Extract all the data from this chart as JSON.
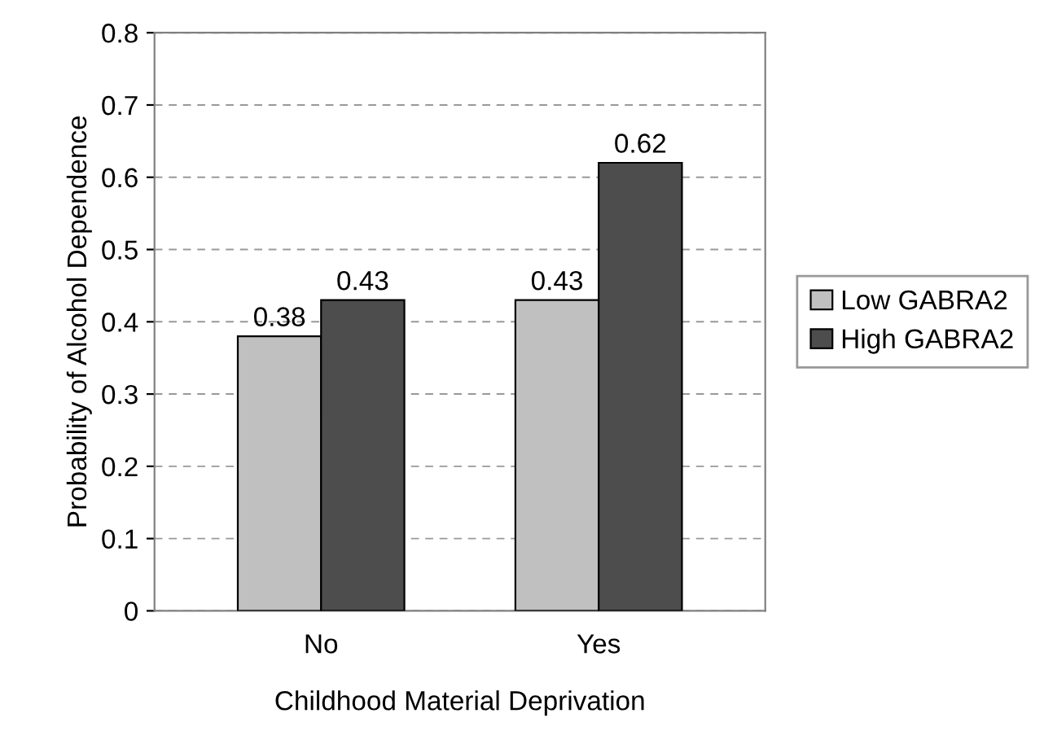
{
  "chart_data": {
    "type": "bar",
    "xlabel": "Childhood Material Deprivation",
    "ylabel": "Probability of Alcohol Dependence",
    "categories": [
      "No",
      "Yes"
    ],
    "series": [
      {
        "name": "Low GABRA2",
        "color": "#c0c0c0",
        "values": [
          0.38,
          0.43
        ]
      },
      {
        "name": "High GABRA2",
        "color": "#4d4d4d",
        "values": [
          0.43,
          0.62
        ]
      }
    ],
    "ylim": [
      0,
      0.8
    ],
    "yticks": [
      {
        "value": 0,
        "label": "0"
      },
      0.1,
      0.2,
      0.3,
      0.4,
      0.5,
      0.6,
      0.7,
      0.8
    ],
    "grid": "y",
    "legend": "right",
    "data_labels": true
  }
}
